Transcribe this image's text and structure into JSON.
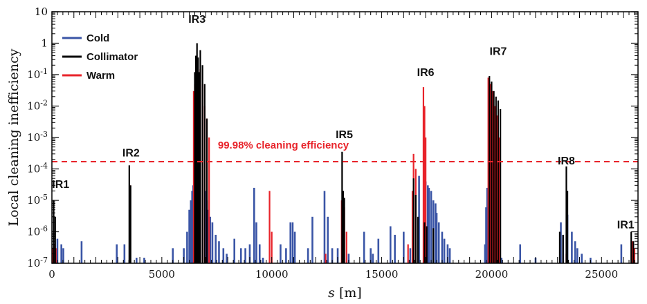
{
  "chart_data": {
    "type": "bar",
    "title": "",
    "xlabel_italic": "s",
    "xlabel_unit": " [m]",
    "ylabel": "Local cleaning inefficiency",
    "xlim": [
      0,
      26659
    ],
    "ylim": [
      1e-07,
      10
    ],
    "yscale": "log",
    "x_ticks": [
      0,
      5000,
      10000,
      15000,
      20000,
      25000
    ],
    "x_tick_labels": [
      "0",
      "5000",
      "10000",
      "15000",
      "20000",
      "25000"
    ],
    "y_ticks": [
      1e-07,
      1e-06,
      1e-05,
      0.0001,
      0.001,
      0.01,
      0.1,
      1,
      10
    ],
    "y_tick_labels": [
      {
        "base": "10",
        "exp": "-7"
      },
      {
        "base": "10",
        "exp": "-6"
      },
      {
        "base": "10",
        "exp": "-5"
      },
      {
        "base": "10",
        "exp": "-4"
      },
      {
        "base": "10",
        "exp": "-3"
      },
      {
        "base": "10",
        "exp": "-2"
      },
      {
        "base": "10",
        "exp": "-1"
      },
      {
        "base": "1",
        "exp": ""
      },
      {
        "base": "10",
        "exp": ""
      }
    ],
    "colors": {
      "Cold": "#3a55a6",
      "Collimator": "#000000",
      "Warm": "#e8232a"
    },
    "legend": [
      {
        "name": "Cold",
        "color": "#3a55a6"
      },
      {
        "name": "Collimator",
        "color": "#000000"
      },
      {
        "name": "Warm",
        "color": "#e8232a"
      }
    ],
    "legend_position": "top-left",
    "threshold": {
      "value": 0.00017,
      "label": "99.98% cleaning efficiency",
      "color": "#e8232a",
      "style": "dashed"
    },
    "ir_labels": [
      {
        "name": "IR1",
        "s": 400,
        "value": 2.5e-05
      },
      {
        "name": "IR2",
        "s": 3600,
        "value": 0.00025
      },
      {
        "name": "IR3",
        "s": 6600,
        "value": 4.5
      },
      {
        "name": "IR5",
        "s": 13300,
        "value": 0.00095
      },
      {
        "name": "IR6",
        "s": 17000,
        "value": 0.09
      },
      {
        "name": "IR7",
        "s": 20300,
        "value": 0.42
      },
      {
        "name": "IR8",
        "s": 23400,
        "value": 0.00014
      },
      {
        "name": "IR1",
        "s": 26100,
        "value": 1.3e-06
      }
    ],
    "series": [
      {
        "name": "Cold",
        "points": [
          [
            60,
            3e-07
          ],
          [
            250,
            6e-07
          ],
          [
            430,
            4e-07
          ],
          [
            520,
            3e-07
          ],
          [
            1350,
            5e-07
          ],
          [
            2950,
            4e-07
          ],
          [
            3300,
            4e-07
          ],
          [
            3550,
            2e-07
          ],
          [
            3850,
            1.5e-07
          ],
          [
            4200,
            1.5e-07
          ],
          [
            5500,
            3e-07
          ],
          [
            6000,
            3e-07
          ],
          [
            6150,
            1e-06
          ],
          [
            6250,
            5e-06
          ],
          [
            6320,
            1e-05
          ],
          [
            6380,
            2e-05
          ],
          [
            6430,
            3e-05
          ],
          [
            7000,
            2e-05
          ],
          [
            7050,
            1e-05
          ],
          [
            7100,
            5e-06
          ],
          [
            7200,
            3e-06
          ],
          [
            7300,
            2e-06
          ],
          [
            7450,
            8e-07
          ],
          [
            7600,
            5e-07
          ],
          [
            7800,
            3e-07
          ],
          [
            7950,
            2e-07
          ],
          [
            8300,
            6e-07
          ],
          [
            8600,
            3e-07
          ],
          [
            8800,
            3e-07
          ],
          [
            9000,
            4e-07
          ],
          [
            9200,
            2.5e-05
          ],
          [
            9300,
            2e-06
          ],
          [
            9450,
            4e-07
          ],
          [
            9600,
            1.5e-07
          ],
          [
            10400,
            4e-07
          ],
          [
            10650,
            3e-07
          ],
          [
            10850,
            2e-06
          ],
          [
            10950,
            2e-06
          ],
          [
            11050,
            1e-06
          ],
          [
            11650,
            3e-07
          ],
          [
            11850,
            3e-06
          ],
          [
            12400,
            2e-05
          ],
          [
            12550,
            3e-06
          ],
          [
            12750,
            3e-07
          ],
          [
            13000,
            3e-07
          ],
          [
            13500,
            2e-07
          ],
          [
            14200,
            1e-06
          ],
          [
            14500,
            3e-07
          ],
          [
            14600,
            2e-07
          ],
          [
            14850,
            6e-07
          ],
          [
            15400,
            1.5e-06
          ],
          [
            15600,
            8e-07
          ],
          [
            16000,
            1e-06
          ],
          [
            16300,
            3e-07
          ],
          [
            16700,
            6e-05
          ],
          [
            16950,
            5e-05
          ],
          [
            17000,
            4e-05
          ],
          [
            17100,
            3e-05
          ],
          [
            17150,
            2.5e-05
          ],
          [
            17250,
            2e-05
          ],
          [
            17350,
            1e-05
          ],
          [
            17450,
            8e-06
          ],
          [
            17500,
            4e-06
          ],
          [
            17600,
            2e-06
          ],
          [
            17750,
            1e-06
          ],
          [
            17850,
            6e-07
          ],
          [
            18000,
            4e-07
          ],
          [
            18100,
            3e-07
          ],
          [
            19700,
            4e-07
          ],
          [
            19750,
            6e-06
          ],
          [
            19800,
            2.5e-05
          ],
          [
            20150,
            2e-06
          ],
          [
            20300,
            3e-07
          ],
          [
            20450,
            1.5e-07
          ],
          [
            21300,
            4e-07
          ],
          [
            22000,
            1.5e-07
          ],
          [
            23150,
            2e-06
          ],
          [
            23250,
            8e-07
          ],
          [
            23450,
            3.5e-06
          ],
          [
            23650,
            1e-06
          ],
          [
            23800,
            5e-07
          ],
          [
            23900,
            3e-07
          ],
          [
            24100,
            2e-07
          ],
          [
            24500,
            1.5e-07
          ],
          [
            25900,
            4e-07
          ]
        ]
      },
      {
        "name": "Collimator",
        "points": [
          [
            80,
            1e-05
          ],
          [
            150,
            3e-06
          ],
          [
            3520,
            0.00013
          ],
          [
            3580,
            3e-05
          ],
          [
            6500,
            0.12
          ],
          [
            6550,
            0.4
          ],
          [
            6600,
            1.0
          ],
          [
            6650,
            0.35
          ],
          [
            6700,
            0.12
          ],
          [
            6750,
            0.6
          ],
          [
            6850,
            0.2
          ],
          [
            6950,
            0.05
          ],
          [
            7050,
            0.004
          ],
          [
            13200,
            0.00035
          ],
          [
            13250,
            2e-05
          ],
          [
            13300,
            1.2e-05
          ],
          [
            16450,
            5e-05
          ],
          [
            16550,
            1.5e-05
          ],
          [
            16650,
            3e-06
          ],
          [
            16950,
            2e-06
          ],
          [
            17050,
            1.5e-06
          ],
          [
            17350,
            1.3e-06
          ],
          [
            19900,
            0.09
          ],
          [
            20000,
            0.06
          ],
          [
            20100,
            0.03
          ],
          [
            20200,
            0.02
          ],
          [
            20300,
            0.015
          ],
          [
            20400,
            0.008
          ],
          [
            23100,
            1e-06
          ],
          [
            23250,
            8e-07
          ],
          [
            23400,
            0.00012
          ],
          [
            23450,
            2e-05
          ],
          [
            26350,
            1e-06
          ],
          [
            26450,
            5e-07
          ]
        ]
      },
      {
        "name": "Warm",
        "points": [
          [
            20,
            3e-07
          ],
          [
            100,
            4e-07
          ],
          [
            180,
            3e-07
          ],
          [
            3560,
            3e-05
          ],
          [
            6450,
            0.03
          ],
          [
            6500,
            0.05
          ],
          [
            6550,
            0.1
          ],
          [
            6600,
            0.15
          ],
          [
            6650,
            0.07
          ],
          [
            6700,
            0.02
          ],
          [
            6750,
            0.15
          ],
          [
            6850,
            0.05
          ],
          [
            6950,
            0.01
          ],
          [
            7050,
            0.004
          ],
          [
            7150,
            0.001
          ],
          [
            9900,
            2e-05
          ],
          [
            10000,
            1e-06
          ],
          [
            12450,
            2e-07
          ],
          [
            13180,
            1e-05
          ],
          [
            13300,
            6e-06
          ],
          [
            13400,
            1e-06
          ],
          [
            16200,
            4e-07
          ],
          [
            16400,
            2e-05
          ],
          [
            16450,
            0.0003
          ],
          [
            16550,
            0.0001
          ],
          [
            16900,
            0.04
          ],
          [
            16950,
            0.01
          ],
          [
            17000,
            0.001
          ],
          [
            19850,
            0.08
          ],
          [
            19950,
            0.05
          ],
          [
            20050,
            0.03
          ],
          [
            20150,
            0.01
          ],
          [
            20250,
            0.005
          ],
          [
            20350,
            0.001
          ],
          [
            23400,
            2e-07
          ],
          [
            26400,
            5e-07
          ],
          [
            26500,
            3e-07
          ]
        ]
      }
    ]
  }
}
